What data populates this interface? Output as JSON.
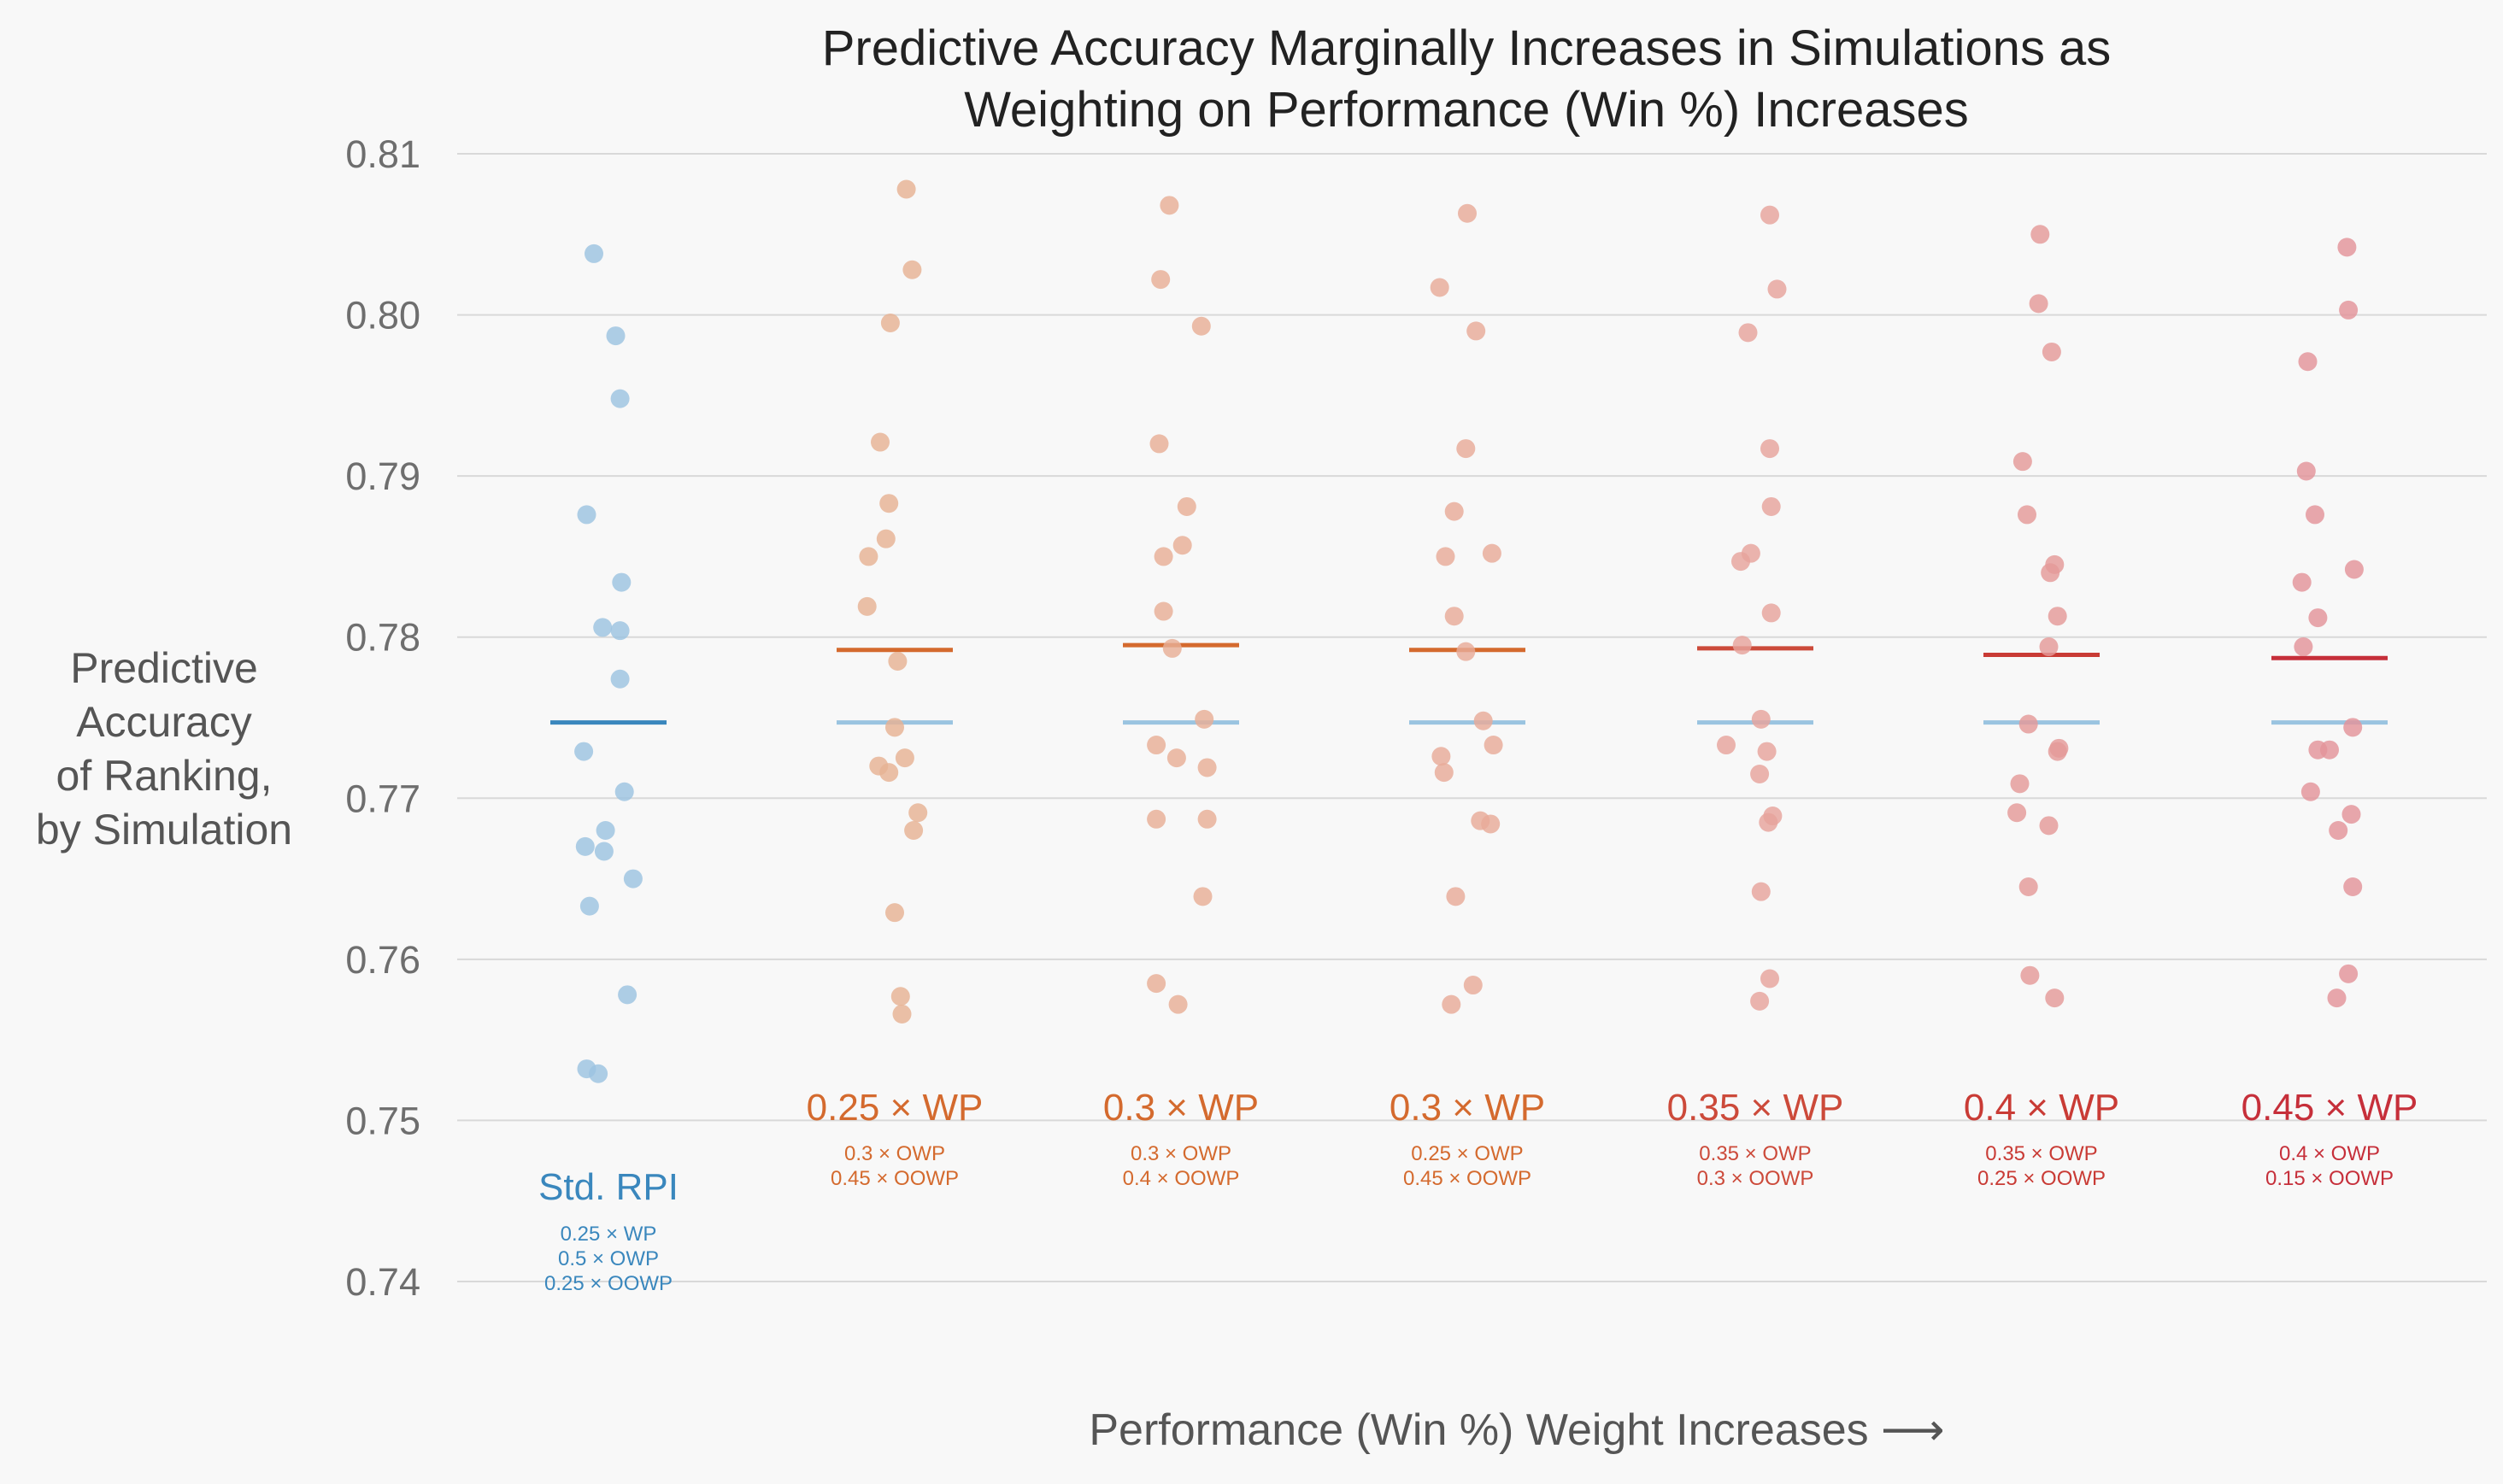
{
  "chart_data": {
    "type": "scatter",
    "title": "Predictive Accuracy Marginally Increases in Simulations as Weighting on Performance (Win %) Increases",
    "title_lines": [
      "Predictive Accuracy Marginally Increases in Simulations as",
      "Weighting on Performance (Win %) Increases"
    ],
    "ylabel": "Predictive Accuracy of Ranking, by Simulation",
    "ylabel_lines": [
      "Predictive",
      "Accuracy",
      "of Ranking,",
      "by Simulation"
    ],
    "xlabel": "Performance (Win %) Weight Increases ⟶",
    "ylim": [
      0.74,
      0.81
    ],
    "yticks": [
      0.74,
      0.75,
      0.76,
      0.77,
      0.78,
      0.79,
      0.8,
      0.81
    ],
    "ytick_labels": [
      "0.74",
      "0.75",
      "0.76",
      "0.77",
      "0.78",
      "0.79",
      "0.80",
      "0.81"
    ],
    "grid": true,
    "baseline_mean": 0.7747,
    "baseline_mean_color": "#9ac4e0",
    "groups": [
      {
        "label": "Std. RPI",
        "sublabels": [
          "0.25 × WP",
          "0.5 × OWP",
          "0.25 × OOWP"
        ],
        "color": "#3a87bd",
        "point_color": "#9cc3e1",
        "mean": 0.7747,
        "values": [
          0.8038,
          0.7987,
          0.7948,
          0.7876,
          0.7834,
          0.7806,
          0.7804,
          0.7774,
          0.7729,
          0.7704,
          0.768,
          0.767,
          0.7667,
          0.765,
          0.7633,
          0.7578,
          0.7532,
          0.7529
        ],
        "offsets": [
          -0.1,
          0.05,
          0.08,
          -0.15,
          0.09,
          -0.04,
          0.08,
          0.08,
          -0.17,
          0.11,
          -0.02,
          -0.16,
          -0.03,
          0.17,
          -0.13,
          0.13,
          -0.15,
          -0.07
        ]
      },
      {
        "label": "0.25 × WP",
        "sublabels": [
          "0.3 × OWP",
          "0.45 × OOWP"
        ],
        "color": "#d46a2e",
        "point_color": "#e7b294",
        "mean": 0.7792,
        "values": [
          0.8078,
          0.8028,
          0.7995,
          0.7921,
          0.7883,
          0.7861,
          0.785,
          0.7819,
          0.7785,
          0.7744,
          0.7725,
          0.772,
          0.7716,
          0.7691,
          0.768,
          0.7629,
          0.7577,
          0.7566
        ],
        "offsets": [
          0.08,
          0.12,
          -0.03,
          -0.1,
          -0.04,
          -0.06,
          -0.18,
          -0.19,
          0.02,
          0.0,
          0.07,
          -0.11,
          -0.04,
          0.16,
          0.13,
          0.0,
          0.04,
          0.05
        ]
      },
      {
        "label": "0.3 × WP",
        "sublabels": [
          "0.3 × OWP",
          "0.4 × OOWP"
        ],
        "color": "#d46a2e",
        "point_color": "#e8ae96",
        "mean": 0.7795,
        "values": [
          0.8068,
          0.8022,
          0.7993,
          0.792,
          0.7881,
          0.7857,
          0.785,
          0.7816,
          0.7793,
          0.7749,
          0.7733,
          0.7725,
          0.7719,
          0.7687,
          0.7687,
          0.7639,
          0.7585,
          0.7572
        ],
        "offsets": [
          -0.08,
          -0.14,
          0.14,
          -0.15,
          0.04,
          0.01,
          -0.12,
          -0.12,
          -0.06,
          0.16,
          -0.17,
          -0.03,
          0.18,
          -0.17,
          0.18,
          0.15,
          -0.17,
          -0.02
        ]
      },
      {
        "label": "0.3 × WP",
        "sublabels": [
          "0.25 × OWP",
          "0.45 × OOWP"
        ],
        "color": "#d46a2e",
        "point_color": "#e8ab98",
        "mean": 0.7792,
        "values": [
          0.8063,
          0.8017,
          0.799,
          0.7917,
          0.7878,
          0.7852,
          0.785,
          0.7813,
          0.7791,
          0.7748,
          0.7733,
          0.7726,
          0.7716,
          0.7686,
          0.7684,
          0.7639,
          0.7584,
          0.7572
        ],
        "offsets": [
          0.0,
          -0.19,
          0.06,
          -0.01,
          -0.09,
          0.17,
          -0.15,
          -0.09,
          -0.01,
          0.11,
          0.18,
          -0.18,
          -0.16,
          0.09,
          0.16,
          -0.08,
          0.04,
          -0.11
        ]
      },
      {
        "label": "0.35 × WP",
        "sublabels": [
          "0.35 × OWP",
          "0.3 × OOWP"
        ],
        "color": "#cc4a3a",
        "point_color": "#e6a49c",
        "mean": 0.7793,
        "values": [
          0.8062,
          0.8016,
          0.7989,
          0.7917,
          0.7881,
          0.7852,
          0.7847,
          0.7815,
          0.7795,
          0.7749,
          0.7733,
          0.7729,
          0.7715,
          0.7689,
          0.7685,
          0.7642,
          0.7588,
          0.7574
        ],
        "offsets": [
          0.1,
          0.15,
          -0.05,
          0.1,
          0.11,
          -0.03,
          -0.1,
          0.11,
          -0.09,
          0.04,
          -0.2,
          0.08,
          0.03,
          0.12,
          0.09,
          0.04,
          0.1,
          0.03
        ]
      },
      {
        "label": "0.4 × WP",
        "sublabels": [
          "0.35 × OWP",
          "0.25 × OOWP"
        ],
        "color": "#c93b35",
        "point_color": "#e49a98",
        "mean": 0.7789,
        "values": [
          0.805,
          0.8007,
          0.7977,
          0.7909,
          0.7876,
          0.7845,
          0.784,
          0.7813,
          0.7794,
          0.7746,
          0.7731,
          0.7729,
          0.7709,
          0.7691,
          0.7683,
          0.7645,
          0.759,
          0.7576
        ],
        "offsets": [
          -0.01,
          -0.02,
          0.07,
          -0.13,
          -0.1,
          0.09,
          0.06,
          0.11,
          0.05,
          -0.09,
          0.12,
          0.11,
          -0.15,
          -0.17,
          0.05,
          -0.09,
          -0.08,
          0.09
        ]
      },
      {
        "label": "0.45 × WP",
        "sublabels": [
          "0.4 × OWP",
          "0.15 × OOWP"
        ],
        "color": "#c62f3a",
        "point_color": "#e3949a",
        "mean": 0.7787,
        "values": [
          0.8042,
          0.8003,
          0.7971,
          0.7903,
          0.7876,
          0.7842,
          0.7834,
          0.7812,
          0.7794,
          0.7744,
          0.773,
          0.773,
          0.7704,
          0.769,
          0.768,
          0.7645,
          0.7591,
          0.7576
        ],
        "offsets": [
          0.12,
          0.13,
          -0.15,
          -0.16,
          -0.1,
          0.17,
          -0.19,
          -0.08,
          -0.18,
          0.16,
          -0.08,
          0.0,
          -0.13,
          0.15,
          0.06,
          0.16,
          0.13,
          0.05
        ]
      }
    ]
  }
}
